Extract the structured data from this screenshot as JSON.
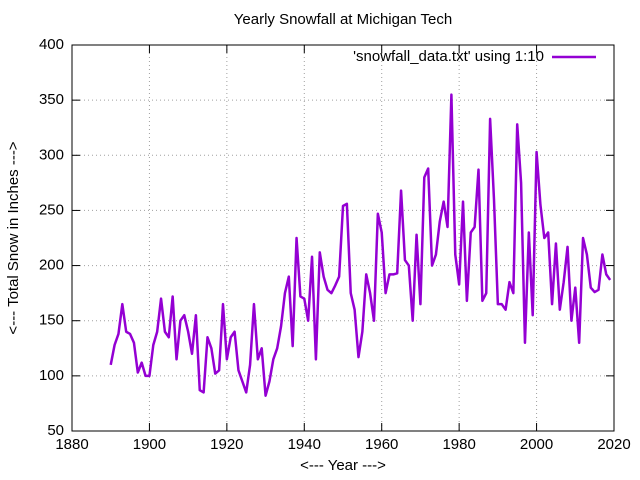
{
  "chart_data": {
    "type": "line",
    "title": "Yearly Snowfall at Michigan Tech",
    "x_label": "<--- Year --->",
    "y_label": "<--- Total Snow in Inches --->",
    "x": [
      1890,
      1891,
      1892,
      1893,
      1894,
      1895,
      1896,
      1897,
      1898,
      1899,
      1900,
      1901,
      1902,
      1903,
      1904,
      1905,
      1906,
      1907,
      1908,
      1909,
      1910,
      1911,
      1912,
      1913,
      1914,
      1915,
      1916,
      1917,
      1918,
      1919,
      1920,
      1921,
      1922,
      1923,
      1924,
      1925,
      1926,
      1927,
      1928,
      1929,
      1930,
      1931,
      1932,
      1933,
      1934,
      1935,
      1936,
      1937,
      1938,
      1939,
      1940,
      1941,
      1942,
      1943,
      1944,
      1945,
      1946,
      1947,
      1948,
      1949,
      1950,
      1951,
      1952,
      1953,
      1954,
      1955,
      1956,
      1957,
      1958,
      1959,
      1960,
      1961,
      1962,
      1963,
      1964,
      1965,
      1966,
      1967,
      1968,
      1969,
      1970,
      1971,
      1972,
      1973,
      1974,
      1975,
      1976,
      1977,
      1978,
      1979,
      1980,
      1981,
      1982,
      1983,
      1984,
      1985,
      1986,
      1987,
      1988,
      1989,
      1990,
      1991,
      1992,
      1993,
      1994,
      1995,
      1996,
      1997,
      1998,
      1999,
      2000,
      2001,
      2002,
      2003,
      2004,
      2005,
      2006,
      2007,
      2008,
      2009,
      2010,
      2011,
      2012,
      2013,
      2014,
      2015,
      2016,
      2017,
      2018,
      2019
    ],
    "series": [
      {
        "name": "'snowfall_data.txt' using 1:10",
        "color": "#9400d3",
        "values": [
          110,
          128,
          138,
          165,
          140,
          138,
          130,
          103,
          112,
          100,
          100,
          128,
          140,
          170,
          140,
          135,
          172,
          115,
          150,
          155,
          140,
          120,
          155,
          87,
          85,
          135,
          125,
          102,
          105,
          165,
          115,
          135,
          140,
          105,
          95,
          85,
          110,
          165,
          115,
          125,
          82,
          95,
          115,
          125,
          145,
          175,
          190,
          127,
          225,
          172,
          170,
          150,
          208,
          115,
          212,
          190,
          178,
          175,
          182,
          190,
          254,
          256,
          175,
          160,
          117,
          140,
          192,
          175,
          150,
          247,
          230,
          175,
          192,
          192,
          193,
          268,
          205,
          200,
          150,
          228,
          165,
          280,
          288,
          200,
          210,
          240,
          258,
          235,
          355,
          210,
          183,
          258,
          168,
          230,
          235,
          287,
          168,
          175,
          333,
          260,
          165,
          165,
          160,
          185,
          175,
          328,
          275,
          130,
          230,
          155,
          303,
          255,
          225,
          230,
          165,
          220,
          160,
          185,
          217,
          150,
          180,
          130,
          225,
          210,
          180,
          176,
          178,
          210,
          192,
          187
        ]
      }
    ],
    "xlim": [
      1880,
      2020
    ],
    "xticks": [
      1880,
      1900,
      1920,
      1940,
      1960,
      1980,
      2000,
      2020
    ],
    "ylim": [
      50,
      400
    ],
    "yticks": [
      50,
      100,
      150,
      200,
      250,
      300,
      350,
      400
    ],
    "grid": true,
    "legend": "top-right"
  }
}
